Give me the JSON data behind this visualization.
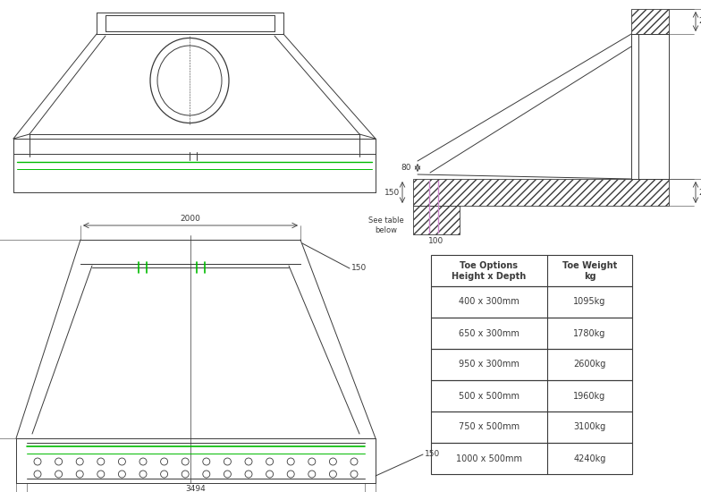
{
  "bg_color": "#ffffff",
  "line_color": "#3a3a3a",
  "green_color": "#00bb00",
  "pink_color": "#cc88cc",
  "table_col1": [
    "Toe Options\nHeight x Depth",
    "400 x 300mm",
    "650 x 300mm",
    "950 x 300mm",
    "500 x 500mm",
    "750 x 500mm",
    "1000 x 500mm"
  ],
  "table_col2": [
    "Toe Weight\nkg",
    "1095kg",
    "1780kg",
    "2600kg",
    "1960kg",
    "3100kg",
    "4240kg"
  ]
}
